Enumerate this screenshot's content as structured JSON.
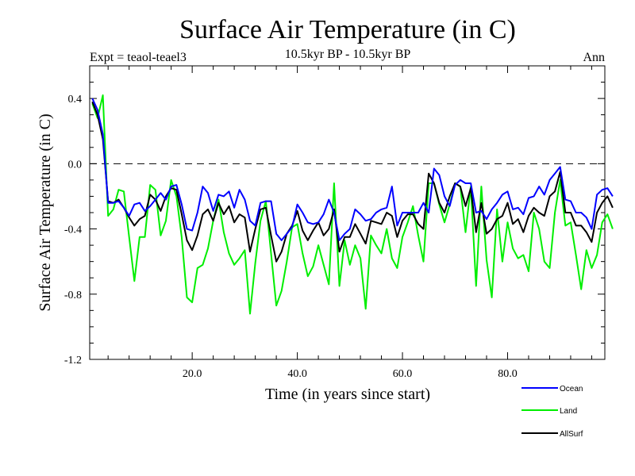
{
  "chart_data": {
    "type": "line",
    "title": "Surface Air Temperature (in C)",
    "subtitle": "10.5kyr BP - 10.5kyr BP",
    "left_label": "Expt = teaol-teael3",
    "right_label": "Ann",
    "xlabel": "Time (in years since start)",
    "ylabel": "Surface Air Temperature (in C)",
    "xlim": [
      0.5,
      98.5
    ],
    "ylim": [
      -1.2,
      0.6
    ],
    "x_ticks": [
      20,
      40,
      60,
      80
    ],
    "x_tick_labels": [
      "20.0",
      "40.0",
      "60.0",
      "80.0"
    ],
    "y_ticks": [
      -1.2,
      -0.8,
      -0.4,
      0.0,
      0.4
    ],
    "y_tick_labels": [
      "-1.2",
      "-0.8",
      "-0.4",
      "0.0",
      "0.4"
    ],
    "reference_line": 0.0,
    "legend_position": "bottom-right, outside plot",
    "series": [
      {
        "name": "Ocean",
        "color": "#0000ff",
        "values": [
          0.4,
          0.33,
          0.18,
          -0.24,
          -0.24,
          -0.23,
          -0.27,
          -0.32,
          -0.25,
          -0.24,
          -0.29,
          -0.26,
          -0.22,
          -0.18,
          -0.22,
          -0.14,
          -0.13,
          -0.25,
          -0.4,
          -0.41,
          -0.3,
          -0.14,
          -0.18,
          -0.29,
          -0.19,
          -0.2,
          -0.17,
          -0.27,
          -0.16,
          -0.22,
          -0.35,
          -0.38,
          -0.24,
          -0.23,
          -0.23,
          -0.43,
          -0.47,
          -0.43,
          -0.39,
          -0.25,
          -0.3,
          -0.36,
          -0.37,
          -0.36,
          -0.31,
          -0.22,
          -0.3,
          -0.47,
          -0.43,
          -0.4,
          -0.28,
          -0.31,
          -0.35,
          -0.34,
          -0.3,
          -0.28,
          -0.27,
          -0.14,
          -0.38,
          -0.3,
          -0.3,
          -0.3,
          -0.3,
          -0.24,
          -0.3,
          -0.03,
          -0.07,
          -0.2,
          -0.26,
          -0.13,
          -0.1,
          -0.12,
          -0.12,
          -0.3,
          -0.29,
          -0.34,
          -0.28,
          -0.24,
          -0.19,
          -0.17,
          -0.28,
          -0.27,
          -0.31,
          -0.21,
          -0.2,
          -0.14,
          -0.19,
          -0.1,
          -0.06,
          -0.02,
          -0.22,
          -0.23,
          -0.3,
          -0.3,
          -0.33,
          -0.4,
          -0.19,
          -0.16,
          -0.15,
          -0.2
        ]
      },
      {
        "name": "Land",
        "color": "#00ee00",
        "values": [
          0.37,
          0.28,
          0.42,
          -0.32,
          -0.28,
          -0.16,
          -0.17,
          -0.45,
          -0.72,
          -0.45,
          -0.45,
          -0.13,
          -0.16,
          -0.44,
          -0.35,
          -0.1,
          -0.2,
          -0.45,
          -0.82,
          -0.85,
          -0.64,
          -0.62,
          -0.52,
          -0.35,
          -0.22,
          -0.42,
          -0.55,
          -0.62,
          -0.58,
          -0.53,
          -0.92,
          -0.61,
          -0.35,
          -0.23,
          -0.55,
          -0.87,
          -0.78,
          -0.6,
          -0.39,
          -0.37,
          -0.55,
          -0.69,
          -0.63,
          -0.5,
          -0.62,
          -0.74,
          -0.12,
          -0.75,
          -0.47,
          -0.62,
          -0.5,
          -0.58,
          -0.89,
          -0.44,
          -0.5,
          -0.55,
          -0.4,
          -0.58,
          -0.64,
          -0.45,
          -0.36,
          -0.26,
          -0.44,
          -0.6,
          -0.12,
          -0.12,
          -0.25,
          -0.36,
          -0.25,
          -0.12,
          -0.14,
          -0.42,
          -0.14,
          -0.75,
          -0.14,
          -0.59,
          -0.82,
          -0.28,
          -0.6,
          -0.36,
          -0.52,
          -0.58,
          -0.56,
          -0.66,
          -0.3,
          -0.4,
          -0.6,
          -0.64,
          -0.3,
          -0.1,
          -0.38,
          -0.36,
          -0.56,
          -0.77,
          -0.53,
          -0.64,
          -0.56,
          -0.36,
          -0.31,
          -0.4
        ]
      },
      {
        "name": "AllSurf",
        "color": "#000000",
        "values": [
          0.38,
          0.3,
          0.15,
          -0.23,
          -0.24,
          -0.22,
          -0.27,
          -0.33,
          -0.38,
          -0.34,
          -0.32,
          -0.19,
          -0.22,
          -0.29,
          -0.2,
          -0.15,
          -0.16,
          -0.31,
          -0.47,
          -0.53,
          -0.44,
          -0.31,
          -0.28,
          -0.35,
          -0.24,
          -0.31,
          -0.26,
          -0.36,
          -0.31,
          -0.33,
          -0.54,
          -0.4,
          -0.28,
          -0.27,
          -0.44,
          -0.6,
          -0.54,
          -0.43,
          -0.38,
          -0.29,
          -0.41,
          -0.47,
          -0.41,
          -0.36,
          -0.44,
          -0.4,
          -0.28,
          -0.54,
          -0.45,
          -0.45,
          -0.37,
          -0.43,
          -0.49,
          -0.35,
          -0.36,
          -0.37,
          -0.3,
          -0.32,
          -0.45,
          -0.35,
          -0.31,
          -0.31,
          -0.37,
          -0.4,
          -0.06,
          -0.12,
          -0.24,
          -0.3,
          -0.2,
          -0.12,
          -0.14,
          -0.26,
          -0.15,
          -0.42,
          -0.24,
          -0.43,
          -0.4,
          -0.34,
          -0.32,
          -0.24,
          -0.37,
          -0.34,
          -0.42,
          -0.32,
          -0.27,
          -0.3,
          -0.32,
          -0.2,
          -0.17,
          -0.05,
          -0.3,
          -0.3,
          -0.38,
          -0.38,
          -0.42,
          -0.48,
          -0.3,
          -0.24,
          -0.2,
          -0.27
        ]
      }
    ]
  }
}
